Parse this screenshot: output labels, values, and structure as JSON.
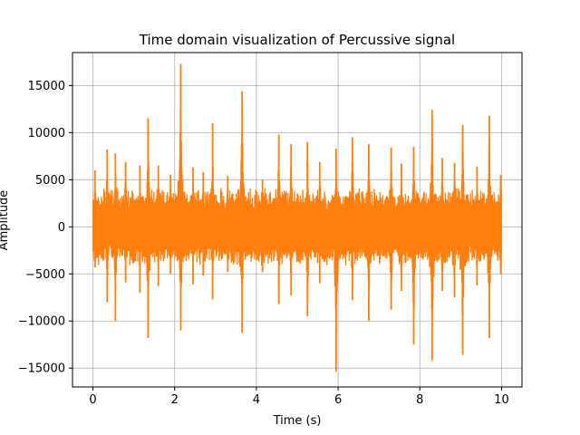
{
  "chart_data": {
    "type": "line",
    "title": "Time domain visualization of Percussive signal",
    "xlabel": "Time (s)",
    "ylabel": "Amplitude",
    "xlim": [
      -0.5,
      10.5
    ],
    "ylim": [
      -17000,
      18500
    ],
    "xticks": [
      0,
      2,
      4,
      6,
      8,
      10
    ],
    "xtick_labels": [
      "0",
      "2",
      "4",
      "6",
      "8",
      "10"
    ],
    "yticks": [
      -15000,
      -10000,
      -5000,
      0,
      5000,
      10000,
      15000
    ],
    "ytick_labels": [
      "−15000",
      "−10000",
      "−5000",
      "0",
      "5000",
      "10000",
      "15000"
    ],
    "grid": true,
    "series": [
      {
        "color": "#ff7f0e",
        "peaks": [
          {
            "t": 0.05,
            "max": 6000,
            "min": -4300
          },
          {
            "t": 0.35,
            "max": 8200,
            "min": -8000
          },
          {
            "t": 0.55,
            "max": 7800,
            "min": -10000
          },
          {
            "t": 0.8,
            "max": 6900,
            "min": -5900
          },
          {
            "t": 1.15,
            "max": 6500,
            "min": -7000
          },
          {
            "t": 1.35,
            "max": 11500,
            "min": -11800
          },
          {
            "t": 1.6,
            "max": 6500,
            "min": -6300
          },
          {
            "t": 1.9,
            "max": 5500,
            "min": -5000
          },
          {
            "t": 2.15,
            "max": 17300,
            "min": -11000
          },
          {
            "t": 2.45,
            "max": 6300,
            "min": -6100
          },
          {
            "t": 2.7,
            "max": 5800,
            "min": -5200
          },
          {
            "t": 2.93,
            "max": 11000,
            "min": -7700
          },
          {
            "t": 3.3,
            "max": 5400,
            "min": -4800
          },
          {
            "t": 3.65,
            "max": 14400,
            "min": -11200
          },
          {
            "t": 4.15,
            "max": 5000,
            "min": -4800
          },
          {
            "t": 4.55,
            "max": 9800,
            "min": -8200
          },
          {
            "t": 4.85,
            "max": 8800,
            "min": -7300
          },
          {
            "t": 5.25,
            "max": 9000,
            "min": -9500
          },
          {
            "t": 5.55,
            "max": 6900,
            "min": -6000
          },
          {
            "t": 5.95,
            "max": 8300,
            "min": -15400
          },
          {
            "t": 6.35,
            "max": 9500,
            "min": -7800
          },
          {
            "t": 6.75,
            "max": 8800,
            "min": -10000
          },
          {
            "t": 7.3,
            "max": 8400,
            "min": -8800
          },
          {
            "t": 7.55,
            "max": 6700,
            "min": -6800
          },
          {
            "t": 7.85,
            "max": 8500,
            "min": -12500
          },
          {
            "t": 8.3,
            "max": 12400,
            "min": -14200
          },
          {
            "t": 8.55,
            "max": 7300,
            "min": -6800
          },
          {
            "t": 8.85,
            "max": 6800,
            "min": -7500
          },
          {
            "t": 9.05,
            "max": 10800,
            "min": -13600
          },
          {
            "t": 9.4,
            "max": 6400,
            "min": -6200
          },
          {
            "t": 9.7,
            "max": 11800,
            "min": -11800
          },
          {
            "t": 9.98,
            "max": 5500,
            "min": -5000
          }
        ],
        "baseline_amplitude": 3000,
        "duration": 10.0
      }
    ]
  },
  "colors": {
    "background": "#ffffff",
    "grid": "#b0b0b0",
    "axes": "#000000",
    "line": "#ff7f0e"
  }
}
